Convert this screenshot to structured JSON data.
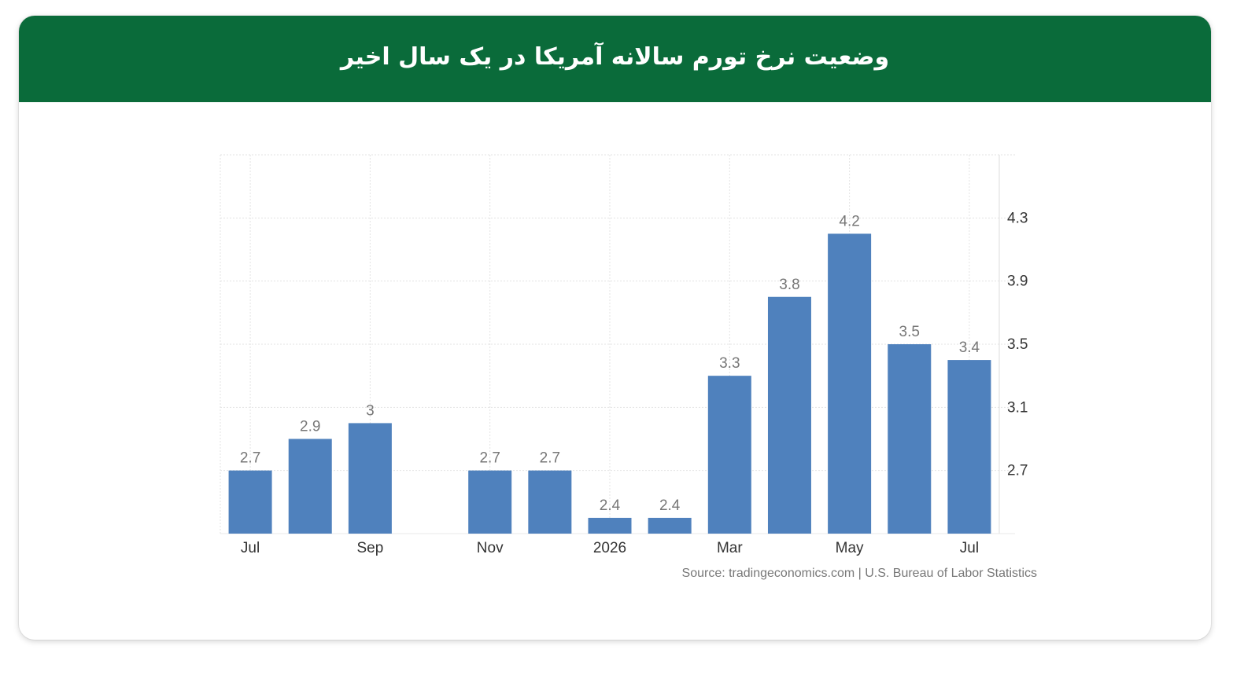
{
  "header": {
    "title": "وضعیت نرخ تورم سالانه آمریکا در یک سال اخیر",
    "background_color": "#0a6b3a"
  },
  "chart_data": {
    "type": "bar",
    "categories": [
      "Jul",
      "",
      "Sep",
      "",
      "Nov",
      "",
      "2026",
      "",
      "Mar",
      "",
      "May",
      "",
      "Jul"
    ],
    "series": [
      {
        "values": [
          2.7,
          2.9,
          3,
          null,
          2.7,
          2.7,
          2.4,
          2.4,
          3.3,
          3.8,
          4.2,
          3.5,
          3.4
        ],
        "value_labels": [
          "2.7",
          "2.9",
          "3",
          "",
          "2.7",
          "2.7",
          "2.4",
          "2.4",
          "3.3",
          "3.8",
          "4.2",
          "3.5",
          "3.4"
        ]
      }
    ],
    "x_tick_labels": [
      "Jul",
      "Sep",
      "Nov",
      "2026",
      "Mar",
      "May",
      "Jul"
    ],
    "y_tick_labels": [
      "4.3",
      "3.9",
      "3.5",
      "3.1",
      "2.7"
    ],
    "y_ticks": [
      4.3,
      3.9,
      3.5,
      3.1,
      2.7
    ],
    "ylim": [
      2.3,
      4.7
    ],
    "y_axis_side": "right",
    "grid": true,
    "bar_color": "#4f81bd",
    "source": "Source: tradingeconomics.com | U.S. Bureau of Labor Statistics"
  }
}
